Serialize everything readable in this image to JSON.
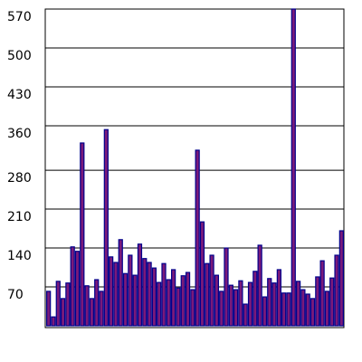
{
  "chart_data": {
    "type": "bar",
    "values": [
      62,
      16,
      80,
      49,
      77,
      142,
      134,
      329,
      72,
      49,
      83,
      62,
      353,
      124,
      114,
      155,
      94,
      127,
      91,
      147,
      121,
      114,
      104,
      78,
      112,
      83,
      101,
      68,
      90,
      96,
      65,
      316,
      187,
      112,
      127,
      91,
      62,
      140,
      73,
      65,
      81,
      39,
      78,
      98,
      145,
      52,
      85,
      77,
      101,
      59,
      59,
      570,
      80,
      65,
      57,
      49,
      88,
      117,
      62,
      86,
      127,
      171
    ],
    "color": "#7a1a7a",
    "edge_color": "#00008b",
    "ylim": [
      0,
      570
    ],
    "yticks": [
      70,
      140,
      210,
      280,
      360,
      430,
      500,
      570
    ],
    "grid": true
  }
}
